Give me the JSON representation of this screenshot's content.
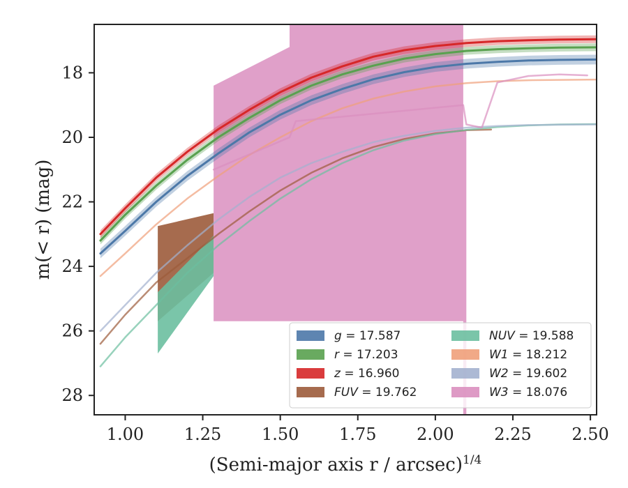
{
  "chart_data": {
    "type": "line",
    "xlabel": "(Semi-major axis r / arcsec)",
    "xlabel_exponent": "1/4",
    "ylabel": "m(< r) (mag)",
    "xlim": [
      0.9,
      2.52
    ],
    "ylim": [
      28.6,
      16.5
    ],
    "y_inverted": true,
    "grid": false,
    "legend_position": "lower-right",
    "legend_columns": 2,
    "x_ticks": [
      1.0,
      1.25,
      1.5,
      1.75,
      2.0,
      2.25,
      2.5
    ],
    "x_tick_labels": [
      "1.00",
      "1.25",
      "1.50",
      "1.75",
      "2.00",
      "2.25",
      "2.50"
    ],
    "y_ticks": [
      18,
      20,
      22,
      24,
      26,
      28
    ],
    "y_tick_labels": [
      "18",
      "20",
      "22",
      "24",
      "26",
      "28"
    ],
    "series": [
      {
        "name": "g = 17.587",
        "legend_var": "g",
        "legend_value": "17.587",
        "color": "#4c78a8",
        "x": [
          0.92,
          1.0,
          1.1,
          1.2,
          1.3,
          1.4,
          1.5,
          1.6,
          1.7,
          1.8,
          1.9,
          2.0,
          2.1,
          2.2,
          2.3,
          2.4,
          2.52
        ],
        "y": [
          23.6,
          22.9,
          22.0,
          21.2,
          20.5,
          19.85,
          19.3,
          18.85,
          18.5,
          18.2,
          17.98,
          17.82,
          17.72,
          17.66,
          17.62,
          17.6,
          17.59
        ],
        "band": 0.15
      },
      {
        "name": "r = 17.203",
        "legend_var": "r",
        "legend_value": "17.203",
        "color": "#59a14f",
        "x": [
          0.92,
          1.0,
          1.1,
          1.2,
          1.3,
          1.4,
          1.5,
          1.6,
          1.7,
          1.8,
          1.9,
          2.0,
          2.1,
          2.2,
          2.3,
          2.4,
          2.52
        ],
        "y": [
          23.2,
          22.4,
          21.5,
          20.7,
          20.0,
          19.4,
          18.85,
          18.4,
          18.05,
          17.78,
          17.56,
          17.42,
          17.32,
          17.27,
          17.24,
          17.22,
          17.21
        ],
        "band": 0.12
      },
      {
        "name": "z = 16.960",
        "legend_var": "z",
        "legend_value": "16.960",
        "color": "#d62728",
        "x": [
          0.92,
          1.0,
          1.1,
          1.2,
          1.3,
          1.4,
          1.5,
          1.6,
          1.7,
          1.8,
          1.9,
          2.0,
          2.1,
          2.2,
          2.3,
          2.4,
          2.52
        ],
        "y": [
          23.0,
          22.2,
          21.25,
          20.45,
          19.75,
          19.15,
          18.6,
          18.15,
          17.8,
          17.5,
          17.3,
          17.17,
          17.08,
          17.02,
          16.99,
          16.97,
          16.96
        ],
        "band": 0.12
      },
      {
        "name": "FUV = 19.762",
        "legend_var": "FUV",
        "legend_value": "19.762",
        "color": "#9c5b3b",
        "x": [
          0.92,
          1.0,
          1.1,
          1.2,
          1.3,
          1.4,
          1.5,
          1.6,
          1.7,
          1.8,
          1.9,
          2.0,
          2.1,
          2.18
        ],
        "y": [
          26.4,
          25.5,
          24.5,
          23.75,
          23.0,
          22.3,
          21.65,
          21.1,
          20.65,
          20.3,
          20.05,
          19.88,
          19.78,
          19.76
        ],
        "band": 0.0
      },
      {
        "name": "NUV = 19.588",
        "legend_var": "NUV",
        "legend_value": "19.588",
        "color": "#6cbfa0",
        "x": [
          0.92,
          1.0,
          1.1,
          1.2,
          1.3,
          1.4,
          1.5,
          1.6,
          1.7,
          1.8,
          1.9,
          2.0,
          2.1,
          2.2,
          2.3,
          2.4,
          2.52
        ],
        "y": [
          27.1,
          26.2,
          25.2,
          24.2,
          23.35,
          22.6,
          21.9,
          21.3,
          20.8,
          20.4,
          20.1,
          19.9,
          19.77,
          19.68,
          19.63,
          19.6,
          19.59
        ],
        "band": 0.0
      },
      {
        "name": "W1 = 18.212",
        "legend_var": "W1",
        "legend_value": "18.212",
        "color": "#f0a07a",
        "x": [
          0.92,
          1.0,
          1.1,
          1.2,
          1.3,
          1.4,
          1.5,
          1.6,
          1.7,
          1.8,
          1.9,
          2.0,
          2.1,
          2.2,
          2.3,
          2.4,
          2.52
        ],
        "y": [
          24.3,
          23.6,
          22.7,
          21.9,
          21.2,
          20.55,
          20.0,
          19.5,
          19.1,
          18.8,
          18.58,
          18.42,
          18.32,
          18.26,
          18.23,
          18.22,
          18.21
        ],
        "band": 0.0
      },
      {
        "name": "W2 = 19.602",
        "legend_var": "W2",
        "legend_value": "19.602",
        "color": "#a3b1cf",
        "x": [
          0.92,
          1.0,
          1.1,
          1.2,
          1.3,
          1.4,
          1.5,
          1.6,
          1.7,
          1.8,
          1.9,
          2.0,
          2.1,
          2.2,
          2.3,
          2.4,
          2.52
        ],
        "y": [
          26.0,
          25.2,
          24.2,
          23.35,
          22.55,
          21.85,
          21.25,
          20.8,
          20.45,
          20.15,
          19.95,
          19.8,
          19.7,
          19.65,
          19.62,
          19.61,
          19.6
        ],
        "band": 0.0
      },
      {
        "name": "W3 = 18.076",
        "legend_var": "W3",
        "legend_value": "18.076",
        "color": "#da8fbf",
        "x": [
          1.285,
          1.53,
          1.55,
          2.09,
          2.1,
          2.15,
          2.2,
          2.3,
          2.4,
          2.49
        ],
        "y": [
          21.0,
          20.0,
          19.5,
          19.0,
          19.6,
          19.7,
          18.3,
          18.1,
          18.05,
          18.08
        ],
        "band": 0.0
      }
    ],
    "annotations": [
      {
        "name": "FUV = 19.762",
        "polygon_x": [
          1.105,
          1.285,
          1.285,
          1.105
        ],
        "polygon_y": [
          22.75,
          22.35,
          24.2,
          25.7
        ]
      },
      {
        "name": "NUV = 19.588",
        "polygon_x": [
          1.105,
          1.285,
          1.285,
          1.105
        ],
        "polygon_y": [
          24.8,
          23.05,
          24.3,
          26.7
        ]
      },
      {
        "name": "W3 = 18.076",
        "polygon_x": [
          1.285,
          1.53,
          1.53,
          2.09,
          2.09,
          2.1,
          2.1,
          2.09,
          2.09,
          1.285
        ],
        "polygon_y": [
          18.4,
          17.2,
          16.5,
          16.5,
          19.8,
          19.8,
          28.6,
          28.6,
          25.7,
          25.7
        ]
      }
    ]
  }
}
